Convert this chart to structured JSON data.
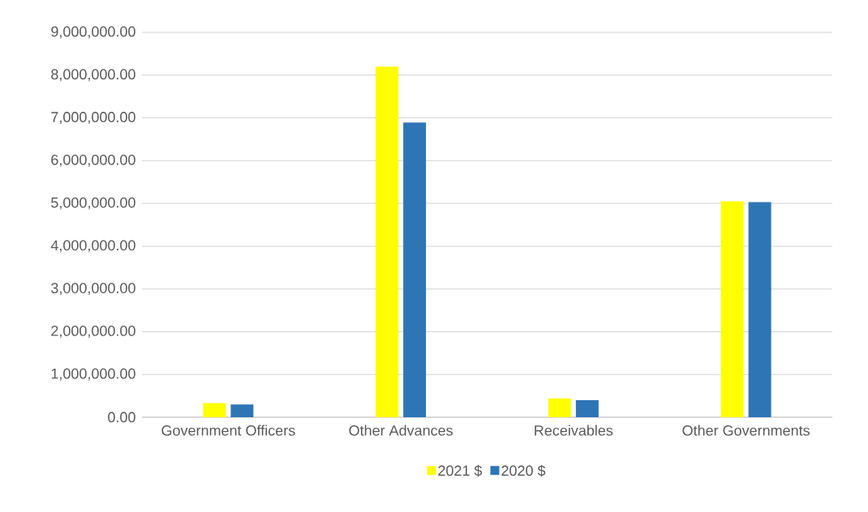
{
  "chart_data": {
    "type": "bar",
    "categories": [
      "Government Officers",
      "Other Advances",
      "Receivables",
      "Other Governments"
    ],
    "series": [
      {
        "name": "2021 $",
        "color": "#ffff00",
        "values": [
          330000,
          8200000,
          440000,
          5050000
        ]
      },
      {
        "name": "2020 $",
        "color": "#2e75b6",
        "values": [
          300000,
          6890000,
          400000,
          5030000
        ]
      }
    ],
    "ylim": [
      0,
      9000000
    ],
    "yticks": [
      {
        "value": 0,
        "label": "0.00"
      },
      {
        "value": 1000000,
        "label": "1,000,000.00"
      },
      {
        "value": 2000000,
        "label": "2,000,000.00"
      },
      {
        "value": 3000000,
        "label": "3,000,000.00"
      },
      {
        "value": 4000000,
        "label": "4,000,000.00"
      },
      {
        "value": 5000000,
        "label": "5,000,000.00"
      },
      {
        "value": 6000000,
        "label": "6,000,000.00"
      },
      {
        "value": 7000000,
        "label": "7,000,000.00"
      },
      {
        "value": 8000000,
        "label": "8,000,000.00"
      },
      {
        "value": 9000000,
        "label": "9,000,000.00"
      }
    ],
    "grid": "y",
    "legend": "bottom"
  }
}
